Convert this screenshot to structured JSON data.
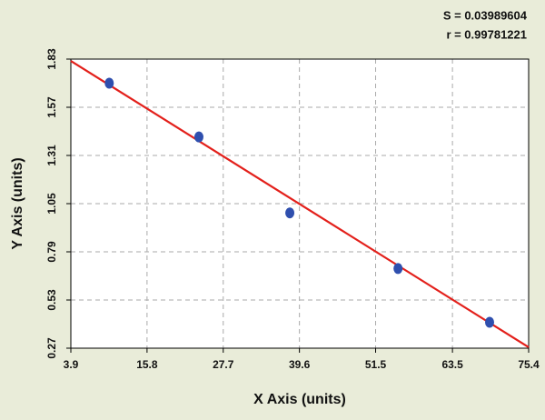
{
  "chart_data": {
    "type": "scatter",
    "annotations": [
      "S = 0.03989604",
      "r = 0.99781221"
    ],
    "x_label": "X Axis (units)",
    "y_label": "Y Axis (units)",
    "xlim": [
      3.9,
      75.4
    ],
    "ylim": [
      0.27,
      1.83
    ],
    "xticks": [
      3.9,
      15.8,
      27.7,
      39.6,
      51.5,
      63.5,
      75.4
    ],
    "yticks": [
      0.27,
      0.53,
      0.79,
      1.05,
      1.31,
      1.57,
      1.83
    ],
    "grid": true,
    "points": {
      "color": "#2f4fae",
      "x": [
        9.9,
        23.9,
        38.1,
        55.0,
        69.3
      ],
      "y": [
        1.7,
        1.41,
        1.0,
        0.7,
        0.41
      ]
    },
    "fit_line": {
      "color": "#e3201b",
      "x": [
        3.9,
        75.4
      ],
      "y": [
        1.82,
        0.275
      ]
    }
  }
}
